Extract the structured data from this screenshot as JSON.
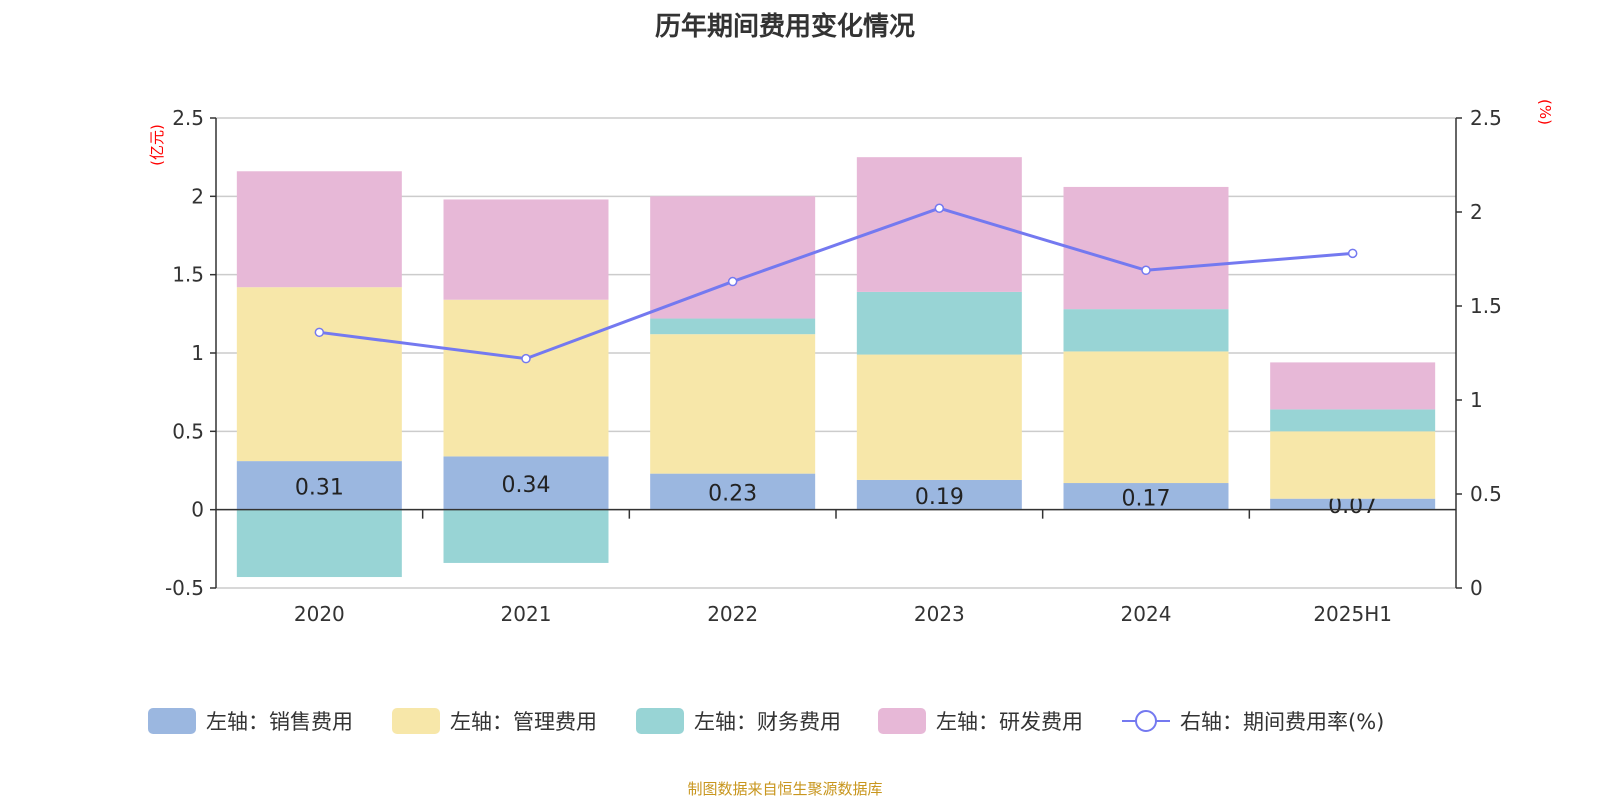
{
  "chart_data": {
    "type": "bar",
    "stacked": true,
    "title": "历年期间费用变化情况",
    "categories": [
      "2020",
      "2021",
      "2022",
      "2023",
      "2024",
      "2025H1"
    ],
    "left_axis": {
      "label": "(亿元)",
      "range": [
        -0.5,
        2.5
      ],
      "ticks": [
        "-0.5",
        "0",
        "0.5",
        "1",
        "1.5",
        "2",
        "2.5"
      ]
    },
    "right_axis": {
      "label": "(%)",
      "range": [
        0,
        2.5
      ],
      "ticks": [
        "0",
        "0.5",
        "1",
        "1.5",
        "2",
        "2.5"
      ]
    },
    "grid": true,
    "legend_position": "bottom",
    "series": [
      {
        "name": "左轴：销售费用",
        "type": "bar",
        "axis": "left",
        "color": "#9bb7e0",
        "values": [
          0.31,
          0.34,
          0.23,
          0.19,
          0.17,
          0.07
        ],
        "labels": [
          "0.31",
          "0.34",
          "0.23",
          "0.19",
          "0.17",
          "0.07"
        ]
      },
      {
        "name": "左轴：管理费用",
        "type": "bar",
        "axis": "left",
        "color": "#f7e7a9",
        "values": [
          1.11,
          1.0,
          0.89,
          0.8,
          0.84,
          0.43
        ]
      },
      {
        "name": "左轴：财务费用",
        "type": "bar",
        "axis": "left",
        "color": "#98d4d5",
        "values": [
          -0.43,
          -0.34,
          0.1,
          0.4,
          0.27,
          0.14
        ]
      },
      {
        "name": "左轴：研发费用",
        "type": "bar",
        "axis": "left",
        "color": "#e7b8d7",
        "values": [
          0.74,
          0.64,
          0.78,
          0.86,
          0.78,
          0.3
        ]
      },
      {
        "name": "右轴：期间费用率(%)",
        "type": "line",
        "axis": "right",
        "color": "#7479f0",
        "values": [
          1.36,
          1.22,
          1.63,
          2.02,
          1.69,
          1.78
        ]
      }
    ]
  },
  "source": "制图数据来自恒生聚源数据库"
}
